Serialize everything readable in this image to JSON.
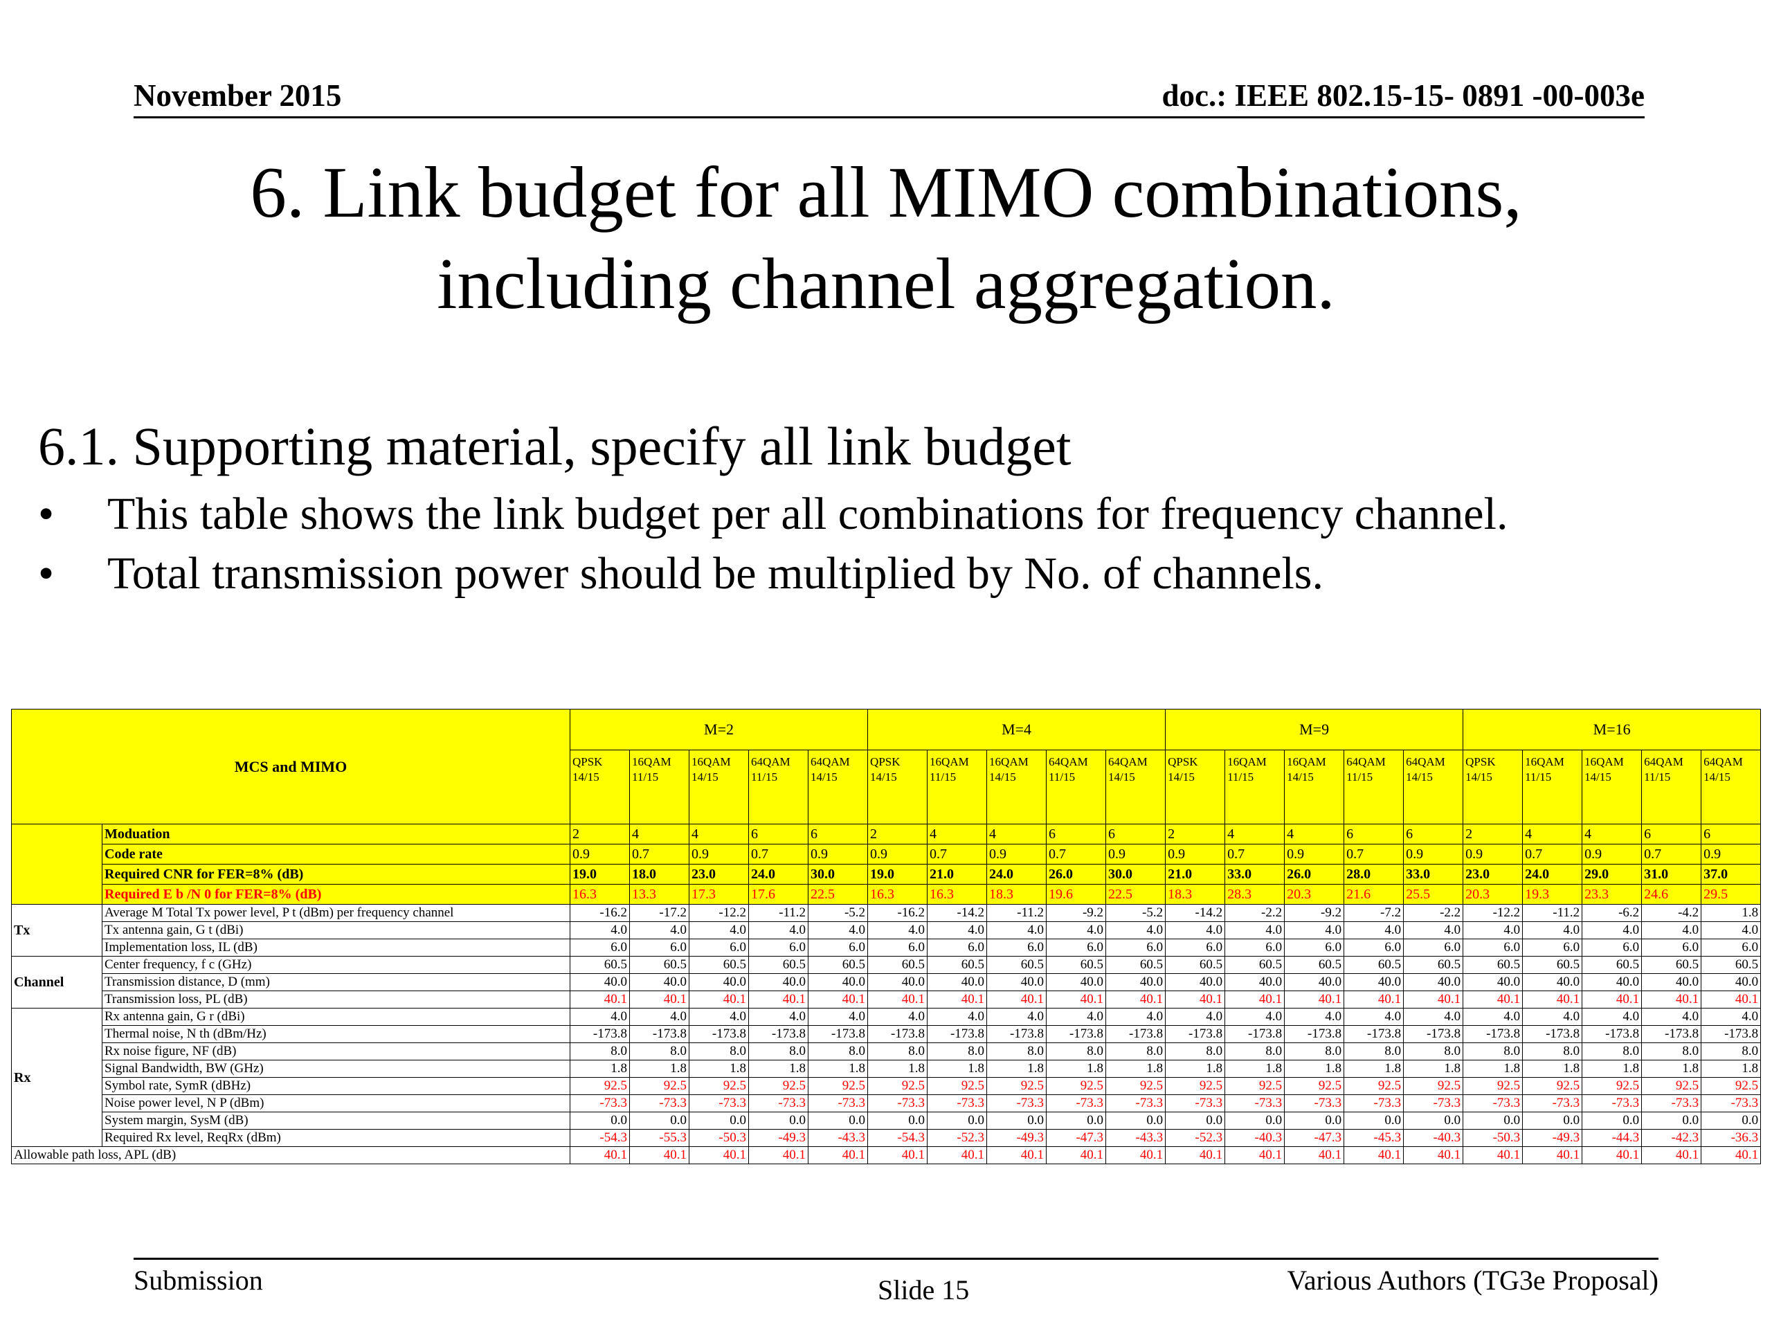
{
  "header": {
    "date": "November 2015",
    "doc": "doc.: IEEE 802.15-15- 0891 -00-003e"
  },
  "title": {
    "line1": "6. Link budget for all MIMO combinations,",
    "line2": "including channel aggregation."
  },
  "subheading": "6.1. Supporting material, specify all link budget",
  "bullets": [
    "This table shows the link budget per all combinations for frequency channel.",
    "Total transmission power should be multiplied by No. of channels."
  ],
  "bullet_glyph": "•",
  "table": {
    "header_label": "MCS and MIMO",
    "groups": [
      "M=2",
      "M=4",
      "M=9",
      "M=16"
    ],
    "modes": [
      [
        "QPSK",
        "14/15"
      ],
      [
        "16QAM",
        "11/15"
      ],
      [
        "16QAM",
        "14/15"
      ],
      [
        "64QAM",
        "11/15"
      ],
      [
        "64QAM",
        "14/15"
      ]
    ],
    "param_rows": [
      {
        "label": "Moduation",
        "bold": false,
        "red": false,
        "values": [
          "2",
          "4",
          "4",
          "6",
          "6",
          "2",
          "4",
          "4",
          "6",
          "6",
          "2",
          "4",
          "4",
          "6",
          "6",
          "2",
          "4",
          "4",
          "6",
          "6"
        ]
      },
      {
        "label": "Code rate",
        "bold": false,
        "red": false,
        "values": [
          "0.9",
          "0.7",
          "0.9",
          "0.7",
          "0.9",
          "0.9",
          "0.7",
          "0.9",
          "0.7",
          "0.9",
          "0.9",
          "0.7",
          "0.9",
          "0.7",
          "0.9",
          "0.9",
          "0.7",
          "0.9",
          "0.7",
          "0.9"
        ]
      },
      {
        "label": "Required CNR for FER=8% (dB)",
        "bold": true,
        "red": false,
        "values": [
          "19.0",
          "18.0",
          "23.0",
          "24.0",
          "30.0",
          "19.0",
          "21.0",
          "24.0",
          "26.0",
          "30.0",
          "21.0",
          "33.0",
          "26.0",
          "28.0",
          "33.0",
          "23.0",
          "24.0",
          "29.0",
          "31.0",
          "37.0"
        ]
      },
      {
        "label": "Required E b /N 0 for FER=8% (dB)",
        "bold": false,
        "red": true,
        "values": [
          "16.3",
          "13.3",
          "17.3",
          "17.6",
          "22.5",
          "16.3",
          "16.3",
          "18.3",
          "19.6",
          "22.5",
          "18.3",
          "28.3",
          "20.3",
          "21.6",
          "25.5",
          "20.3",
          "19.3",
          "23.3",
          "24.6",
          "29.5"
        ]
      }
    ],
    "sections": [
      {
        "name": "Tx",
        "rows": [
          {
            "label": "Average M  Total Tx power level, P t (dBm) per frequency channel",
            "red": false,
            "values": [
              "-16.2",
              "-17.2",
              "-12.2",
              "-11.2",
              "-5.2",
              "-16.2",
              "-14.2",
              "-11.2",
              "-9.2",
              "-5.2",
              "-14.2",
              "-2.2",
              "-9.2",
              "-7.2",
              "-2.2",
              "-12.2",
              "-11.2",
              "-6.2",
              "-4.2",
              "1.8"
            ]
          },
          {
            "label": "Tx antenna gain, G t  (dBi)",
            "red": false,
            "values": [
              "4.0",
              "4.0",
              "4.0",
              "4.0",
              "4.0",
              "4.0",
              "4.0",
              "4.0",
              "4.0",
              "4.0",
              "4.0",
              "4.0",
              "4.0",
              "4.0",
              "4.0",
              "4.0",
              "4.0",
              "4.0",
              "4.0",
              "4.0"
            ]
          },
          {
            "label": "Implementation loss, IL  (dB)",
            "red": false,
            "values": [
              "6.0",
              "6.0",
              "6.0",
              "6.0",
              "6.0",
              "6.0",
              "6.0",
              "6.0",
              "6.0",
              "6.0",
              "6.0",
              "6.0",
              "6.0",
              "6.0",
              "6.0",
              "6.0",
              "6.0",
              "6.0",
              "6.0",
              "6.0"
            ]
          }
        ]
      },
      {
        "name": "Channel",
        "rows": [
          {
            "label": "Center frequency, f c  (GHz)",
            "red": false,
            "values": [
              "60.5",
              "60.5",
              "60.5",
              "60.5",
              "60.5",
              "60.5",
              "60.5",
              "60.5",
              "60.5",
              "60.5",
              "60.5",
              "60.5",
              "60.5",
              "60.5",
              "60.5",
              "60.5",
              "60.5",
              "60.5",
              "60.5",
              "60.5"
            ]
          },
          {
            "label": "Transmission distance, D  (mm)",
            "red": false,
            "values": [
              "40.0",
              "40.0",
              "40.0",
              "40.0",
              "40.0",
              "40.0",
              "40.0",
              "40.0",
              "40.0",
              "40.0",
              "40.0",
              "40.0",
              "40.0",
              "40.0",
              "40.0",
              "40.0",
              "40.0",
              "40.0",
              "40.0",
              "40.0"
            ]
          },
          {
            "label": "Transmission loss, PL  (dB)",
            "red": true,
            "values": [
              "40.1",
              "40.1",
              "40.1",
              "40.1",
              "40.1",
              "40.1",
              "40.1",
              "40.1",
              "40.1",
              "40.1",
              "40.1",
              "40.1",
              "40.1",
              "40.1",
              "40.1",
              "40.1",
              "40.1",
              "40.1",
              "40.1",
              "40.1"
            ]
          }
        ]
      },
      {
        "name": "Rx",
        "rows": [
          {
            "label": "Rx antenna gain, G r  (dBi)",
            "red": false,
            "values": [
              "4.0",
              "4.0",
              "4.0",
              "4.0",
              "4.0",
              "4.0",
              "4.0",
              "4.0",
              "4.0",
              "4.0",
              "4.0",
              "4.0",
              "4.0",
              "4.0",
              "4.0",
              "4.0",
              "4.0",
              "4.0",
              "4.0",
              "4.0"
            ]
          },
          {
            "label": "Thermal noise, N th  (dBm/Hz)",
            "red": false,
            "values": [
              "-173.8",
              "-173.8",
              "-173.8",
              "-173.8",
              "-173.8",
              "-173.8",
              "-173.8",
              "-173.8",
              "-173.8",
              "-173.8",
              "-173.8",
              "-173.8",
              "-173.8",
              "-173.8",
              "-173.8",
              "-173.8",
              "-173.8",
              "-173.8",
              "-173.8",
              "-173.8"
            ]
          },
          {
            "label": "Rx noise figure, NF  (dB)",
            "red": false,
            "values": [
              "8.0",
              "8.0",
              "8.0",
              "8.0",
              "8.0",
              "8.0",
              "8.0",
              "8.0",
              "8.0",
              "8.0",
              "8.0",
              "8.0",
              "8.0",
              "8.0",
              "8.0",
              "8.0",
              "8.0",
              "8.0",
              "8.0",
              "8.0"
            ]
          },
          {
            "label": "Signal Bandwidth, BW (GHz)",
            "red": false,
            "values": [
              "1.8",
              "1.8",
              "1.8",
              "1.8",
              "1.8",
              "1.8",
              "1.8",
              "1.8",
              "1.8",
              "1.8",
              "1.8",
              "1.8",
              "1.8",
              "1.8",
              "1.8",
              "1.8",
              "1.8",
              "1.8",
              "1.8",
              "1.8"
            ]
          },
          {
            "label": "Symbol rate, SymR  (dBHz)",
            "red": true,
            "values": [
              "92.5",
              "92.5",
              "92.5",
              "92.5",
              "92.5",
              "92.5",
              "92.5",
              "92.5",
              "92.5",
              "92.5",
              "92.5",
              "92.5",
              "92.5",
              "92.5",
              "92.5",
              "92.5",
              "92.5",
              "92.5",
              "92.5",
              "92.5"
            ]
          },
          {
            "label": "Noise power level, N P  (dBm)",
            "red": true,
            "values": [
              "-73.3",
              "-73.3",
              "-73.3",
              "-73.3",
              "-73.3",
              "-73.3",
              "-73.3",
              "-73.3",
              "-73.3",
              "-73.3",
              "-73.3",
              "-73.3",
              "-73.3",
              "-73.3",
              "-73.3",
              "-73.3",
              "-73.3",
              "-73.3",
              "-73.3",
              "-73.3"
            ]
          },
          {
            "label": "System margin, SysM  (dB)",
            "red": false,
            "values": [
              "0.0",
              "0.0",
              "0.0",
              "0.0",
              "0.0",
              "0.0",
              "0.0",
              "0.0",
              "0.0",
              "0.0",
              "0.0",
              "0.0",
              "0.0",
              "0.0",
              "0.0",
              "0.0",
              "0.0",
              "0.0",
              "0.0",
              "0.0"
            ]
          },
          {
            "label": "Required Rx level, ReqRx  (dBm)",
            "red": true,
            "values": [
              "-54.3",
              "-55.3",
              "-50.3",
              "-49.3",
              "-43.3",
              "-54.3",
              "-52.3",
              "-49.3",
              "-47.3",
              "-43.3",
              "-52.3",
              "-40.3",
              "-47.3",
              "-45.3",
              "-40.3",
              "-50.3",
              "-49.3",
              "-44.3",
              "-42.3",
              "-36.3"
            ]
          }
        ]
      }
    ],
    "final_row": {
      "label": "Allowable path loss, APL  (dB)",
      "red": true,
      "values": [
        "40.1",
        "40.1",
        "40.1",
        "40.1",
        "40.1",
        "40.1",
        "40.1",
        "40.1",
        "40.1",
        "40.1",
        "40.1",
        "40.1",
        "40.1",
        "40.1",
        "40.1",
        "40.1",
        "40.1",
        "40.1",
        "40.1",
        "40.1"
      ]
    }
  },
  "footer": {
    "left": "Submission",
    "center": "Slide 15",
    "right": "Various Authors (TG3e Proposal)"
  }
}
